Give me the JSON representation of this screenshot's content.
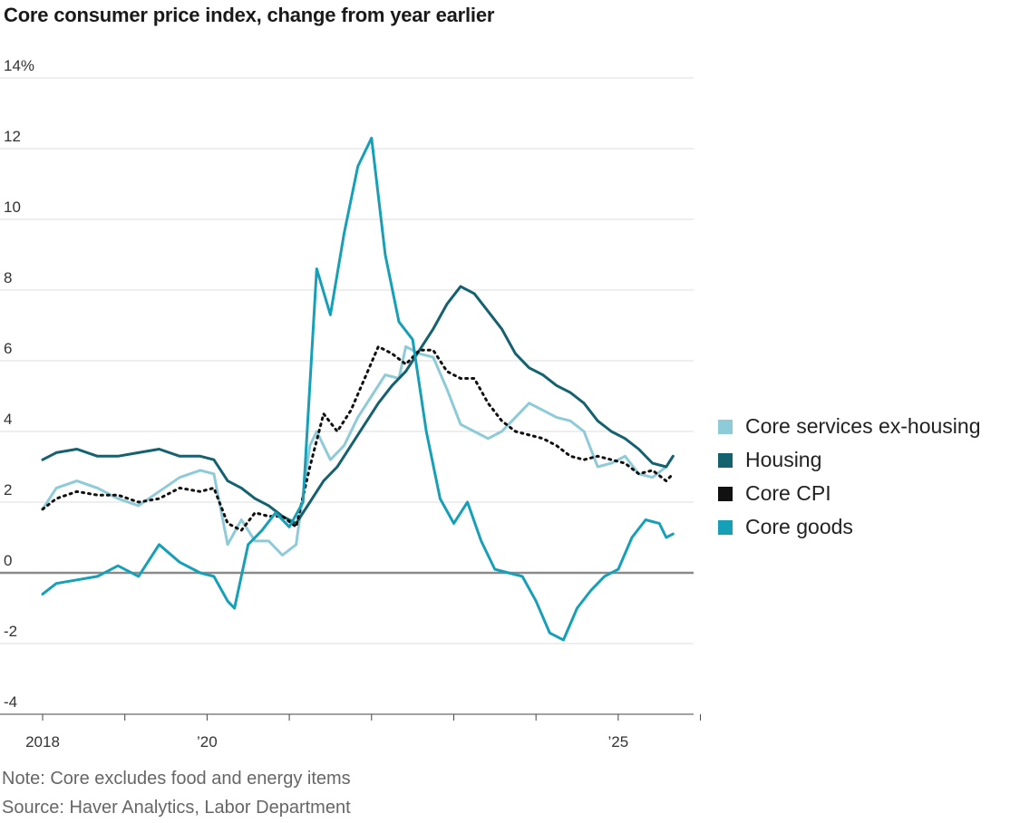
{
  "chart_data": {
    "type": "line",
    "title": "Core consumer price index, change from year earlier",
    "xlabel": "",
    "ylabel": "",
    "y_unit": "%",
    "ylim": [
      -4,
      14
    ],
    "yticks": [
      -4,
      -2,
      0,
      2,
      4,
      6,
      8,
      10,
      12,
      14
    ],
    "ytick_labels": [
      "-4",
      "-2",
      "0",
      "2",
      "4",
      "6",
      "8",
      "10",
      "12",
      "14%"
    ],
    "xlim": [
      "2018-01",
      "2025-12"
    ],
    "xticks": [
      {
        "date": "2018-01",
        "label": "2018"
      },
      {
        "date": "2019-01",
        "label": ""
      },
      {
        "date": "2020-01",
        "label": "’20"
      },
      {
        "date": "2021-01",
        "label": ""
      },
      {
        "date": "2022-01",
        "label": ""
      },
      {
        "date": "2023-01",
        "label": ""
      },
      {
        "date": "2024-01",
        "label": ""
      },
      {
        "date": "2025-01",
        "label": "’25"
      },
      {
        "date": "2026-01",
        "label": ""
      }
    ],
    "grid": true,
    "legend_position": "right",
    "series": [
      {
        "name": "Core services ex-housing",
        "color": "#8ecbd9",
        "style": "solid",
        "points": [
          [
            "2018-01",
            1.8
          ],
          [
            "2018-03",
            2.4
          ],
          [
            "2018-06",
            2.6
          ],
          [
            "2018-09",
            2.4
          ],
          [
            "2018-12",
            2.1
          ],
          [
            "2019-03",
            1.9
          ],
          [
            "2019-06",
            2.3
          ],
          [
            "2019-09",
            2.7
          ],
          [
            "2019-12",
            2.9
          ],
          [
            "2020-02",
            2.8
          ],
          [
            "2020-04",
            0.8
          ],
          [
            "2020-06",
            1.5
          ],
          [
            "2020-08",
            0.9
          ],
          [
            "2020-10",
            0.9
          ],
          [
            "2020-12",
            0.5
          ],
          [
            "2021-02",
            0.8
          ],
          [
            "2021-04",
            3.6
          ],
          [
            "2021-05",
            4.0
          ],
          [
            "2021-07",
            3.2
          ],
          [
            "2021-09",
            3.6
          ],
          [
            "2021-11",
            4.4
          ],
          [
            "2022-01",
            5.0
          ],
          [
            "2022-03",
            5.6
          ],
          [
            "2022-05",
            5.5
          ],
          [
            "2022-06",
            6.4
          ],
          [
            "2022-08",
            6.2
          ],
          [
            "2022-10",
            6.1
          ],
          [
            "2022-12",
            5.2
          ],
          [
            "2023-02",
            4.2
          ],
          [
            "2023-04",
            4.0
          ],
          [
            "2023-06",
            3.8
          ],
          [
            "2023-08",
            4.0
          ],
          [
            "2023-10",
            4.4
          ],
          [
            "2023-12",
            4.8
          ],
          [
            "2024-02",
            4.6
          ],
          [
            "2024-04",
            4.4
          ],
          [
            "2024-06",
            4.3
          ],
          [
            "2024-08",
            4.0
          ],
          [
            "2024-10",
            3.0
          ],
          [
            "2024-12",
            3.1
          ],
          [
            "2025-02",
            3.3
          ],
          [
            "2025-04",
            2.8
          ],
          [
            "2025-06",
            2.7
          ],
          [
            "2025-08",
            3.0
          ],
          [
            "2025-09",
            3.3
          ]
        ]
      },
      {
        "name": "Housing",
        "color": "#14616f",
        "style": "solid",
        "points": [
          [
            "2018-01",
            3.2
          ],
          [
            "2018-03",
            3.4
          ],
          [
            "2018-06",
            3.5
          ],
          [
            "2018-09",
            3.3
          ],
          [
            "2018-12",
            3.3
          ],
          [
            "2019-03",
            3.4
          ],
          [
            "2019-06",
            3.5
          ],
          [
            "2019-09",
            3.3
          ],
          [
            "2019-12",
            3.3
          ],
          [
            "2020-02",
            3.2
          ],
          [
            "2020-04",
            2.6
          ],
          [
            "2020-06",
            2.4
          ],
          [
            "2020-08",
            2.1
          ],
          [
            "2020-10",
            1.9
          ],
          [
            "2020-12",
            1.6
          ],
          [
            "2021-02",
            1.4
          ],
          [
            "2021-04",
            2.0
          ],
          [
            "2021-06",
            2.6
          ],
          [
            "2021-08",
            3.0
          ],
          [
            "2021-10",
            3.6
          ],
          [
            "2021-12",
            4.2
          ],
          [
            "2022-02",
            4.8
          ],
          [
            "2022-04",
            5.3
          ],
          [
            "2022-06",
            5.7
          ],
          [
            "2022-08",
            6.3
          ],
          [
            "2022-10",
            6.9
          ],
          [
            "2022-12",
            7.6
          ],
          [
            "2023-02",
            8.1
          ],
          [
            "2023-04",
            7.9
          ],
          [
            "2023-06",
            7.4
          ],
          [
            "2023-08",
            6.9
          ],
          [
            "2023-10",
            6.2
          ],
          [
            "2023-12",
            5.8
          ],
          [
            "2024-02",
            5.6
          ],
          [
            "2024-04",
            5.3
          ],
          [
            "2024-06",
            5.1
          ],
          [
            "2024-08",
            4.8
          ],
          [
            "2024-10",
            4.3
          ],
          [
            "2024-12",
            4.0
          ],
          [
            "2025-02",
            3.8
          ],
          [
            "2025-04",
            3.5
          ],
          [
            "2025-06",
            3.1
          ],
          [
            "2025-08",
            3.0
          ],
          [
            "2025-09",
            3.3
          ]
        ]
      },
      {
        "name": "Core CPI",
        "color": "#111111",
        "style": "dotted",
        "points": [
          [
            "2018-01",
            1.8
          ],
          [
            "2018-03",
            2.1
          ],
          [
            "2018-06",
            2.3
          ],
          [
            "2018-09",
            2.2
          ],
          [
            "2018-12",
            2.2
          ],
          [
            "2019-03",
            2.0
          ],
          [
            "2019-06",
            2.1
          ],
          [
            "2019-09",
            2.4
          ],
          [
            "2019-12",
            2.3
          ],
          [
            "2020-02",
            2.4
          ],
          [
            "2020-04",
            1.4
          ],
          [
            "2020-06",
            1.2
          ],
          [
            "2020-08",
            1.7
          ],
          [
            "2020-10",
            1.6
          ],
          [
            "2020-12",
            1.6
          ],
          [
            "2021-02",
            1.3
          ],
          [
            "2021-04",
            3.0
          ],
          [
            "2021-06",
            4.5
          ],
          [
            "2021-08",
            4.0
          ],
          [
            "2021-10",
            4.6
          ],
          [
            "2021-12",
            5.5
          ],
          [
            "2022-02",
            6.4
          ],
          [
            "2022-04",
            6.2
          ],
          [
            "2022-06",
            5.9
          ],
          [
            "2022-08",
            6.3
          ],
          [
            "2022-10",
            6.3
          ],
          [
            "2022-12",
            5.7
          ],
          [
            "2023-02",
            5.5
          ],
          [
            "2023-04",
            5.5
          ],
          [
            "2023-06",
            4.8
          ],
          [
            "2023-08",
            4.3
          ],
          [
            "2023-10",
            4.0
          ],
          [
            "2023-12",
            3.9
          ],
          [
            "2024-02",
            3.8
          ],
          [
            "2024-04",
            3.6
          ],
          [
            "2024-06",
            3.3
          ],
          [
            "2024-08",
            3.2
          ],
          [
            "2024-10",
            3.3
          ],
          [
            "2024-12",
            3.2
          ],
          [
            "2025-02",
            3.1
          ],
          [
            "2025-04",
            2.8
          ],
          [
            "2025-06",
            2.9
          ],
          [
            "2025-08",
            2.6
          ],
          [
            "2025-09",
            2.8
          ]
        ]
      },
      {
        "name": "Core goods",
        "color": "#16a0b8",
        "style": "solid",
        "points": [
          [
            "2018-01",
            -0.6
          ],
          [
            "2018-03",
            -0.3
          ],
          [
            "2018-06",
            -0.2
          ],
          [
            "2018-09",
            -0.1
          ],
          [
            "2018-12",
            0.2
          ],
          [
            "2019-03",
            -0.1
          ],
          [
            "2019-06",
            0.8
          ],
          [
            "2019-09",
            0.3
          ],
          [
            "2019-12",
            0.0
          ],
          [
            "2020-02",
            -0.1
          ],
          [
            "2020-04",
            -0.8
          ],
          [
            "2020-05",
            -1.0
          ],
          [
            "2020-07",
            0.8
          ],
          [
            "2020-09",
            1.2
          ],
          [
            "2020-11",
            1.7
          ],
          [
            "2021-01",
            1.3
          ],
          [
            "2021-03",
            2.0
          ],
          [
            "2021-05",
            8.6
          ],
          [
            "2021-07",
            7.3
          ],
          [
            "2021-09",
            9.6
          ],
          [
            "2021-11",
            11.5
          ],
          [
            "2022-01",
            12.3
          ],
          [
            "2022-03",
            9.0
          ],
          [
            "2022-05",
            7.1
          ],
          [
            "2022-07",
            6.6
          ],
          [
            "2022-09",
            4.0
          ],
          [
            "2022-11",
            2.1
          ],
          [
            "2023-01",
            1.4
          ],
          [
            "2023-03",
            2.0
          ],
          [
            "2023-05",
            0.9
          ],
          [
            "2023-07",
            0.1
          ],
          [
            "2023-09",
            0.0
          ],
          [
            "2023-11",
            -0.1
          ],
          [
            "2024-01",
            -0.8
          ],
          [
            "2024-03",
            -1.7
          ],
          [
            "2024-05",
            -1.9
          ],
          [
            "2024-07",
            -1.0
          ],
          [
            "2024-09",
            -0.5
          ],
          [
            "2024-11",
            -0.1
          ],
          [
            "2025-01",
            0.1
          ],
          [
            "2025-03",
            1.0
          ],
          [
            "2025-05",
            1.5
          ],
          [
            "2025-07",
            1.4
          ],
          [
            "2025-08",
            1.0
          ],
          [
            "2025-09",
            1.1
          ]
        ]
      }
    ]
  },
  "notes": {
    "note": "Note: Core excludes food and energy items",
    "source": "Source: Haver Analytics, Labor Department"
  }
}
